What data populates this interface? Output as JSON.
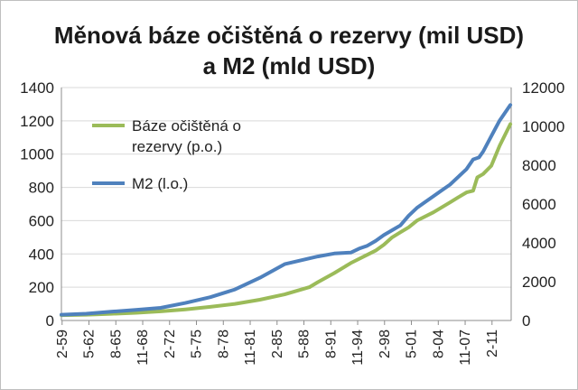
{
  "chart_data": {
    "type": "line",
    "title_line1": "Měnová báze očištěná o rezervy (mil USD)",
    "title_line2": "a M2 (mld USD)",
    "x": [
      "2-59",
      "5-62",
      "8-65",
      "11-68",
      "2-72",
      "5-75",
      "8-78",
      "11-81",
      "2-85",
      "5-88",
      "8-91",
      "11-94",
      "2-98",
      "5-01",
      "8-04",
      "11-07",
      "2-11"
    ],
    "xlim": [
      1959.0,
      2013.4
    ],
    "left_axis": {
      "ylim": [
        0,
        1400
      ],
      "ticks": [
        0,
        200,
        400,
        600,
        800,
        1000,
        1200,
        1400
      ]
    },
    "right_axis": {
      "ylim": [
        0,
        12000
      ],
      "ticks": [
        0,
        2000,
        4000,
        6000,
        8000,
        10000,
        12000
      ]
    },
    "grid": true,
    "legend_position": "top-left",
    "series": [
      {
        "name": "Báze očištěná o rezervy (p.o.)",
        "legend_line1": "Báze očištěná o",
        "legend_line2": "rezervy (p.o.)",
        "axis": "left",
        "color": "#9bbb59",
        "x": [
          1959,
          1962,
          1965,
          1968,
          1971,
          1974,
          1977,
          1980,
          1983,
          1986,
          1989,
          1990,
          1992,
          1994,
          1996,
          1997,
          1998,
          1999,
          2000,
          2001,
          2002,
          2004,
          2006,
          2007,
          2008,
          2008.8,
          2009.3,
          2010,
          2011,
          2012,
          2013.3
        ],
        "values": [
          32,
          35,
          40,
          46,
          55,
          67,
          82,
          100,
          125,
          157,
          200,
          230,
          285,
          345,
          395,
          420,
          455,
          500,
          530,
          560,
          600,
          650,
          710,
          740,
          770,
          780,
          860,
          880,
          930,
          1050,
          1180
        ]
      },
      {
        "name": "M2 (l.o.)",
        "axis": "right",
        "color": "#4f81bd",
        "x": [
          1959,
          1962,
          1965,
          1968,
          1971,
          1974,
          1977,
          1980,
          1983,
          1986,
          1989,
          1990,
          1992,
          1993,
          1994,
          1995,
          1996,
          1997,
          1998,
          1999,
          2000,
          2001,
          2002,
          2003,
          2004,
          2005,
          2006,
          2007,
          2008,
          2008.8,
          2009.5,
          2010,
          2011,
          2012,
          2013.3
        ],
        "values": [
          300,
          350,
          450,
          550,
          650,
          900,
          1200,
          1600,
          2200,
          2900,
          3200,
          3300,
          3450,
          3480,
          3500,
          3700,
          3850,
          4100,
          4400,
          4650,
          4900,
          5400,
          5800,
          6100,
          6400,
          6700,
          7000,
          7400,
          7800,
          8300,
          8400,
          8700,
          9500,
          10300,
          11100
        ]
      }
    ]
  }
}
